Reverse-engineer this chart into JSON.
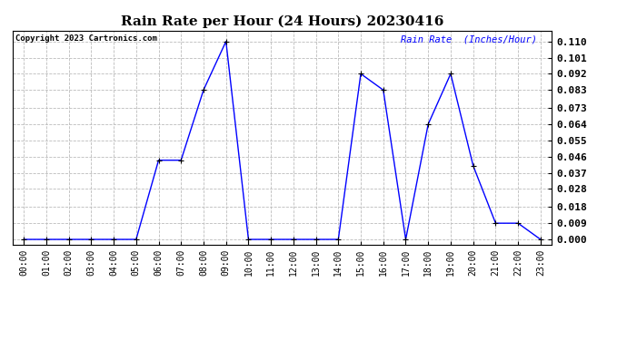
{
  "title": "Rain Rate per Hour (24 Hours) 20230416",
  "copyright_text": "Copyright 2023 Cartronics.com",
  "legend_label": "Rain Rate  (Inches/Hour)",
  "hours": [
    0,
    1,
    2,
    3,
    4,
    5,
    6,
    7,
    8,
    9,
    10,
    11,
    12,
    13,
    14,
    15,
    16,
    17,
    18,
    19,
    20,
    21,
    22,
    23
  ],
  "values": [
    0.0,
    0.0,
    0.0,
    0.0,
    0.0,
    0.0,
    0.044,
    0.044,
    0.083,
    0.11,
    0.0,
    0.0,
    0.0,
    0.0,
    0.0,
    0.092,
    0.083,
    0.0,
    0.064,
    0.092,
    0.041,
    0.009,
    0.009,
    0.0
  ],
  "line_color": "blue",
  "marker_color": "black",
  "grid_color": "#bbbbbb",
  "yticks": [
    0.0,
    0.009,
    0.018,
    0.028,
    0.037,
    0.046,
    0.055,
    0.064,
    0.073,
    0.083,
    0.092,
    0.101,
    0.11
  ],
  "ylim": [
    -0.003,
    0.116
  ],
  "title_fontsize": 11,
  "tick_fontsize": 7,
  "legend_color": "blue",
  "background_color": "#ffffff"
}
